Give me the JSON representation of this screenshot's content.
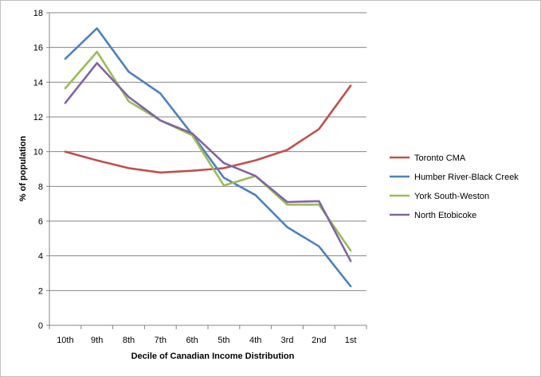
{
  "chart_data": {
    "type": "line",
    "title": "",
    "xlabel": "Decile of Canadian  Income Distribution",
    "ylabel": "% of population",
    "ylim": [
      0,
      18
    ],
    "yticks": [
      0,
      2,
      4,
      6,
      8,
      10,
      12,
      14,
      16,
      18
    ],
    "categories": [
      "10th",
      "9th",
      "8th",
      "7th",
      "6th",
      "5th",
      "4th",
      "3rd",
      "2nd",
      "1st"
    ],
    "grid": "horizontal",
    "legend_position": "right",
    "series": [
      {
        "name": "Toronto CMA",
        "color": "#C0504D",
        "values": [
          10.0,
          9.5,
          9.05,
          8.8,
          8.9,
          9.05,
          9.5,
          10.1,
          11.3,
          13.8
        ]
      },
      {
        "name": "Humber River-Black Creek",
        "color": "#4F81BD",
        "values": [
          15.35,
          17.1,
          14.6,
          13.35,
          11.0,
          8.5,
          7.5,
          5.65,
          4.55,
          2.25
        ]
      },
      {
        "name": "York South-Weston",
        "color": "#9BBB59",
        "values": [
          13.65,
          15.75,
          12.9,
          11.8,
          10.95,
          8.05,
          8.6,
          6.95,
          6.95,
          4.3
        ]
      },
      {
        "name": "North Etobicoke",
        "color": "#8064A2",
        "values": [
          12.8,
          15.1,
          13.15,
          11.8,
          11.05,
          9.35,
          8.6,
          7.1,
          7.15,
          3.7
        ]
      }
    ]
  }
}
